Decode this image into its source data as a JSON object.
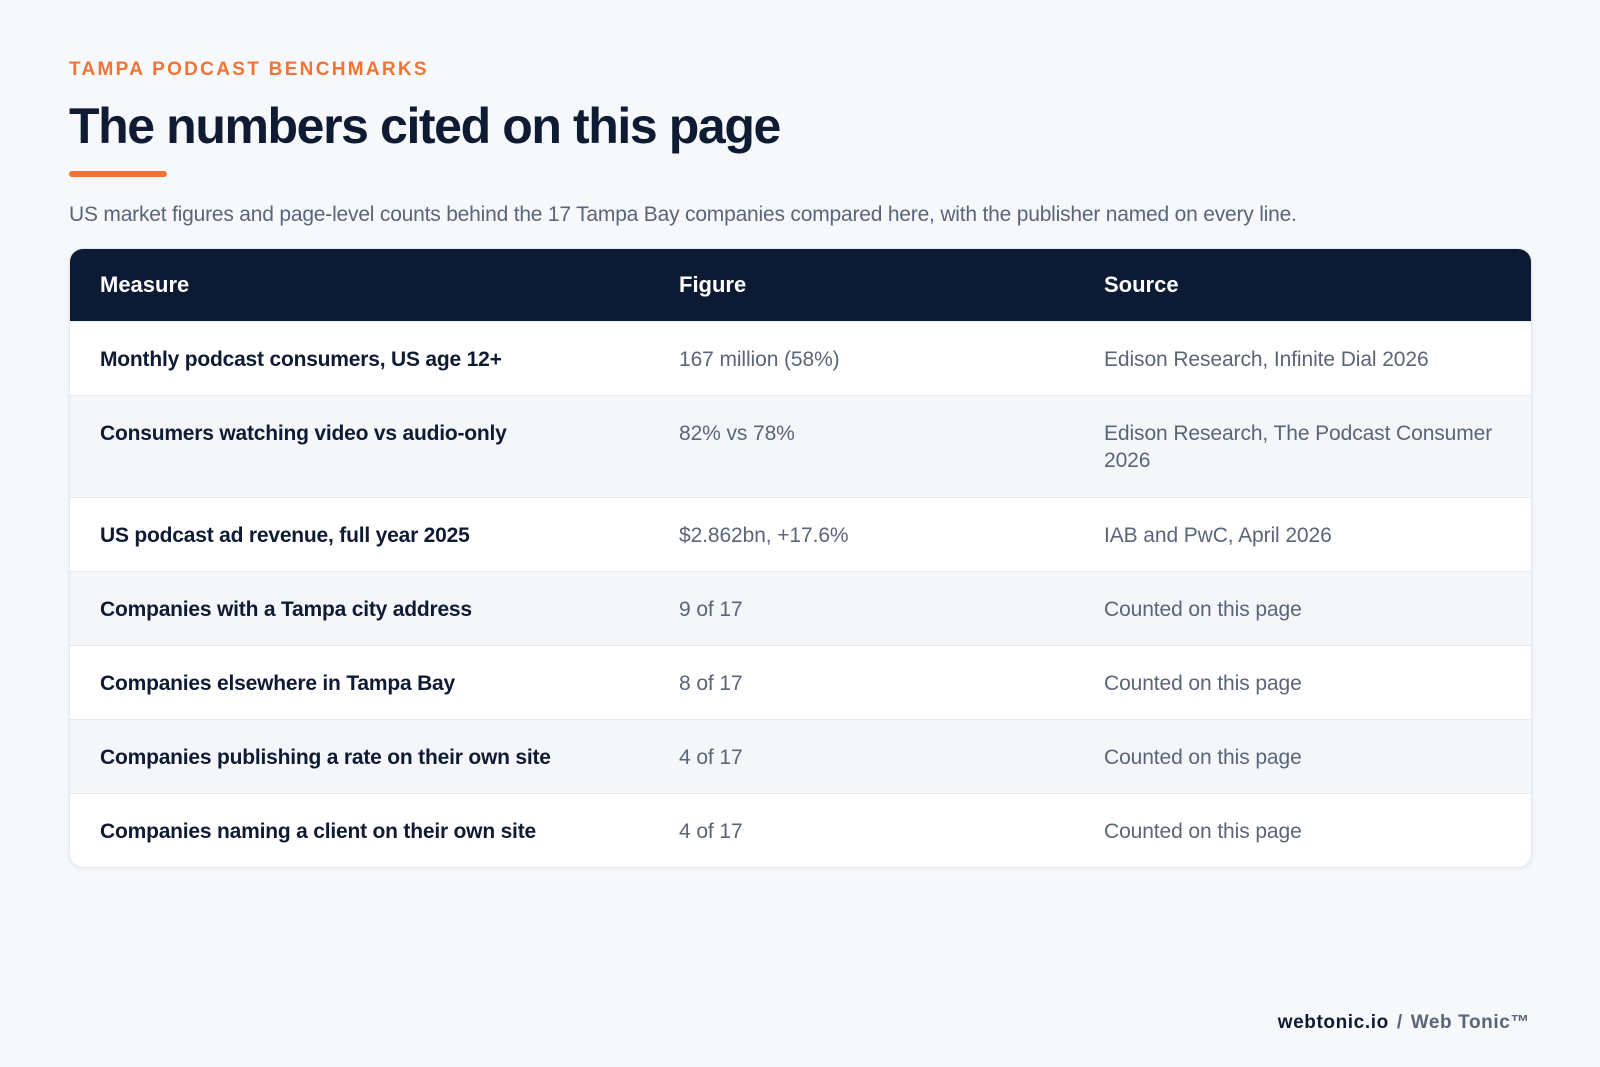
{
  "header": {
    "eyebrow": "TAMPA PODCAST BENCHMARKS",
    "title": "The numbers cited on this page",
    "subtitle": "US market figures and page-level counts behind the 17 Tampa Bay companies compared here, with the publisher named on every line."
  },
  "table": {
    "columns": [
      "Measure",
      "Figure",
      "Source"
    ],
    "rows": [
      {
        "measure": "Monthly podcast consumers, US age 12+",
        "figure": "167 million (58%)",
        "source": "Edison Research, Infinite Dial 2026"
      },
      {
        "measure": "Consumers watching video vs audio-only",
        "figure": "82% vs 78%",
        "source": "Edison Research, The Podcast Consumer 2026"
      },
      {
        "measure": "US podcast ad revenue, full year 2025",
        "figure": "$2.862bn, +17.6%",
        "source": "IAB and PwC, April 2026"
      },
      {
        "measure": "Companies with a Tampa city address",
        "figure": "9 of 17",
        "source": "Counted on this page"
      },
      {
        "measure": "Companies elsewhere in Tampa Bay",
        "figure": "8 of 17",
        "source": "Counted on this page"
      },
      {
        "measure": "Companies publishing a rate on their own site",
        "figure": "4 of 17",
        "source": "Counted on this page"
      },
      {
        "measure": "Companies naming a client on their own site",
        "figure": "4 of 17",
        "source": "Counted on this page"
      }
    ]
  },
  "footer": {
    "domain": "webtonic.io",
    "separator": "/",
    "brand": "Web Tonic™"
  },
  "colors": {
    "accent": "#f07434",
    "header_bg": "#0c1a33",
    "text_dark": "#0f1b33",
    "text_muted": "#5a6578"
  }
}
